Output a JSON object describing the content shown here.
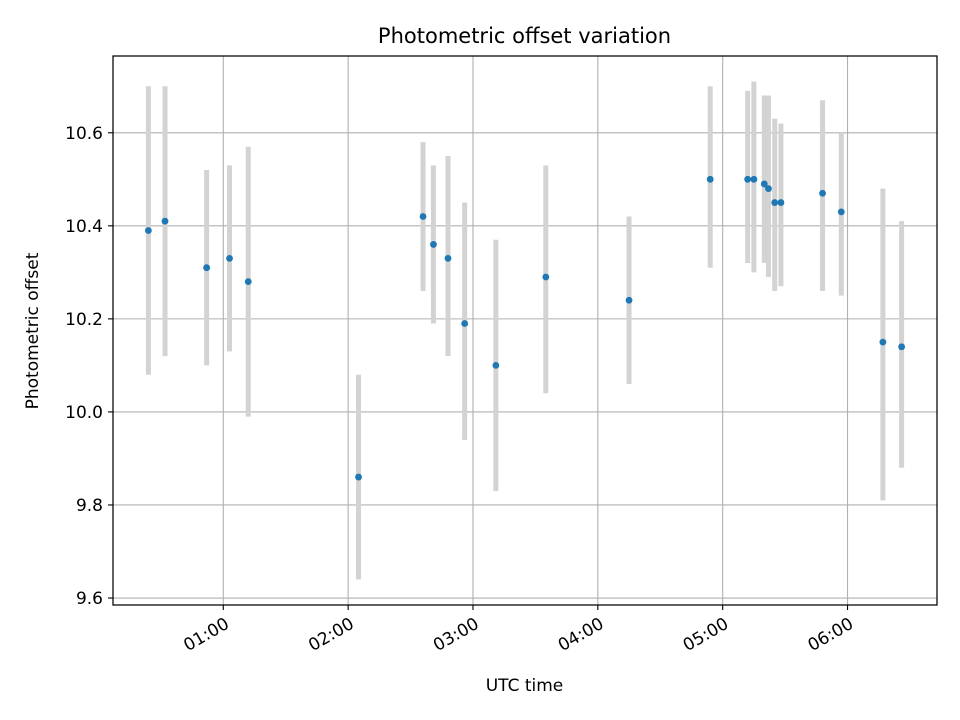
{
  "chart_data": {
    "type": "scatter",
    "title": "Photometric offset variation",
    "xlabel": "UTC time",
    "ylabel": "Photometric offset",
    "x_is_time": true,
    "xlim": [
      "00:07",
      "06:43"
    ],
    "ylim": [
      9.585,
      10.765
    ],
    "x_ticks": [
      "01:00",
      "02:00",
      "03:00",
      "04:00",
      "05:00",
      "06:00"
    ],
    "y_ticks": [
      9.6,
      9.8,
      10.0,
      10.2,
      10.4,
      10.6
    ],
    "y_tick_labels": [
      "9.6",
      "9.8",
      "10.0",
      "10.2",
      "10.4",
      "10.6"
    ],
    "grid": true,
    "point_color": "#1f77b4",
    "errorbar_color": "#d3d3d3",
    "points": [
      {
        "t": "00:24",
        "y": 10.39,
        "lo": 10.08,
        "hi": 10.7
      },
      {
        "t": "00:32",
        "y": 10.41,
        "lo": 10.12,
        "hi": 10.7
      },
      {
        "t": "00:52",
        "y": 10.31,
        "lo": 10.1,
        "hi": 10.52
      },
      {
        "t": "01:03",
        "y": 10.33,
        "lo": 10.13,
        "hi": 10.53
      },
      {
        "t": "01:12",
        "y": 10.28,
        "lo": 9.99,
        "hi": 10.57
      },
      {
        "t": "02:05",
        "y": 9.86,
        "lo": 9.64,
        "hi": 10.08
      },
      {
        "t": "02:36",
        "y": 10.42,
        "lo": 10.26,
        "hi": 10.58
      },
      {
        "t": "02:41",
        "y": 10.36,
        "lo": 10.19,
        "hi": 10.53
      },
      {
        "t": "02:48",
        "y": 10.33,
        "lo": 10.12,
        "hi": 10.55
      },
      {
        "t": "02:56",
        "y": 10.19,
        "lo": 9.94,
        "hi": 10.45
      },
      {
        "t": "03:11",
        "y": 10.1,
        "lo": 9.83,
        "hi": 10.37
      },
      {
        "t": "03:35",
        "y": 10.29,
        "lo": 10.04,
        "hi": 10.53
      },
      {
        "t": "04:15",
        "y": 10.24,
        "lo": 10.06,
        "hi": 10.42
      },
      {
        "t": "04:54",
        "y": 10.5,
        "lo": 10.31,
        "hi": 10.7
      },
      {
        "t": "05:12",
        "y": 10.5,
        "lo": 10.32,
        "hi": 10.69
      },
      {
        "t": "05:15",
        "y": 10.5,
        "lo": 10.3,
        "hi": 10.71
      },
      {
        "t": "05:20",
        "y": 10.49,
        "lo": 10.32,
        "hi": 10.68
      },
      {
        "t": "05:22",
        "y": 10.48,
        "lo": 10.29,
        "hi": 10.68
      },
      {
        "t": "05:25",
        "y": 10.45,
        "lo": 10.26,
        "hi": 10.63
      },
      {
        "t": "05:28",
        "y": 10.45,
        "lo": 10.27,
        "hi": 10.62
      },
      {
        "t": "05:48",
        "y": 10.47,
        "lo": 10.26,
        "hi": 10.67
      },
      {
        "t": "05:57",
        "y": 10.43,
        "lo": 10.25,
        "hi": 10.6
      },
      {
        "t": "06:17",
        "y": 10.15,
        "lo": 9.81,
        "hi": 10.48
      },
      {
        "t": "06:26",
        "y": 10.14,
        "lo": 9.88,
        "hi": 10.41
      }
    ]
  }
}
